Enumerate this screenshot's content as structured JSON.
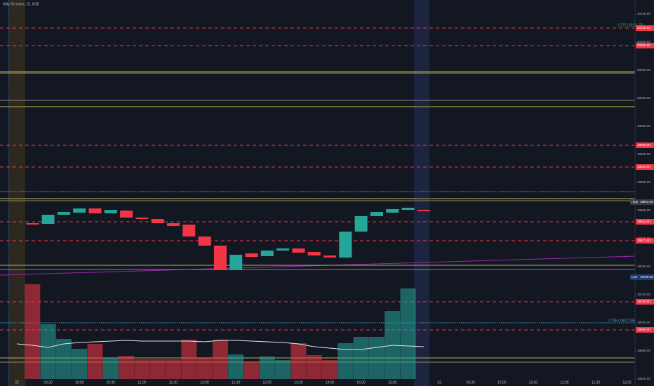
{
  "chart_data": {
    "type": "candlestick",
    "title": "Nifty 50 Index, 15, NSE",
    "categories": [
      "22",
      null,
      "09:30",
      null,
      "10:00",
      null,
      "10:30",
      null,
      "11:00",
      null,
      "11:30",
      null,
      "12:00",
      null,
      "12:30",
      null,
      "13:00",
      null,
      "13:30",
      null,
      "14:00",
      null,
      "14:30",
      null,
      "15:00",
      null,
      null,
      "23",
      null,
      "09:30",
      null,
      "10:00",
      null,
      "10:30",
      null,
      "11:00",
      null,
      "11:30",
      null,
      "12:00"
    ],
    "open": [
      null,
      19842,
      19841,
      19854,
      19857,
      19863,
      19856,
      19860,
      19850,
      19848,
      19842,
      19840,
      19823,
      19810,
      19775,
      19799,
      19795,
      19803,
      19806,
      19801,
      19796,
      19793,
      19830,
      19852,
      19857,
      19861,
      19861,
      null,
      null,
      null,
      null,
      null,
      null,
      null,
      null,
      null,
      null,
      null,
      null,
      null
    ],
    "high": {
      "label": "High",
      "value": 19872,
      "value_label": "19872.00"
    },
    "low": {
      "label": "Low",
      "value": 19765,
      "value_label": "19765.00"
    },
    "close": [
      null,
      19840,
      19854,
      19858,
      19863,
      19856,
      19861,
      19850,
      19848,
      19842,
      19838,
      19823,
      19810,
      19775,
      19797,
      19794,
      19803,
      19806,
      19800,
      19796,
      19793,
      19830,
      19852,
      19858,
      19862,
      19864,
      19859,
      null,
      null,
      null,
      null,
      null,
      null,
      null,
      null,
      null,
      null,
      null,
      null,
      null
    ],
    "volume": [
      null,
      135,
      78,
      57,
      43,
      50,
      30,
      33,
      28,
      28,
      28,
      56,
      30,
      56,
      35,
      25,
      32,
      27,
      51,
      34,
      27,
      51,
      60,
      60,
      97,
      129,
      null,
      null,
      null,
      null,
      null,
      null,
      null,
      null,
      null,
      null,
      null,
      null,
      null,
      null
    ],
    "volume_ma": [
      50,
      48,
      45,
      50,
      52,
      53,
      54,
      55,
      54,
      54,
      54,
      54,
      53,
      55,
      55,
      54,
      53,
      52,
      50,
      46,
      44,
      42,
      42,
      45,
      48,
      47,
      46,
      null,
      null,
      null,
      null,
      null,
      null,
      null,
      null,
      null,
      null,
      null,
      null,
      null
    ],
    "up_color": "#26a69a",
    "down_color": "#f23645",
    "ma_color": "#e0e3eb",
    "ylim": [
      19610,
      20160
    ],
    "volume_ylim": [
      0,
      150
    ],
    "yticks": [
      {
        "value": 20140,
        "label": "20140.00"
      },
      {
        "value": 20100,
        "label": "20100.00"
      },
      {
        "value": 20060,
        "label": "20060.00"
      },
      {
        "value": 20020,
        "label": "20020.00"
      },
      {
        "value": 19980,
        "label": "19980.00"
      },
      {
        "value": 19940,
        "label": "19940.00"
      },
      {
        "value": 19900,
        "label": "19900.00"
      },
      {
        "value": 19860,
        "label": "19860.00"
      },
      {
        "value": 19820,
        "label": "19820.00"
      },
      {
        "value": 19780,
        "label": "19780.00"
      },
      {
        "value": 19740,
        "label": "19740.00"
      },
      {
        "value": 19700,
        "label": "19700.00"
      },
      {
        "value": 19660,
        "label": "19660.00"
      },
      {
        "value": 19620,
        "label": "19620.00"
      }
    ],
    "levels": [
      {
        "value": 20120,
        "label": "20120.00",
        "color": "#f23645",
        "style": "dashed"
      },
      {
        "value": 20095,
        "label": "20095.00",
        "color": "#f23645",
        "style": "dashed"
      },
      {
        "value": 19953,
        "label": "19953.00",
        "color": "#f23645",
        "style": "dashed"
      },
      {
        "value": 19922,
        "label": "19922.00",
        "color": "#f23645",
        "style": "dashed"
      },
      {
        "value": 19844,
        "label": "19844.00",
        "color": "#f23645",
        "style": "dashed"
      },
      {
        "value": 19817,
        "label": "19817.00",
        "color": "#f23645",
        "style": "dashed"
      },
      {
        "value": 19730,
        "label": "19730.00",
        "color": "#f23645",
        "style": "dashed"
      },
      {
        "value": 19690,
        "label": "19690.00",
        "color": "#f23645",
        "style": "dashed"
      },
      {
        "value": 20058,
        "color": "#b5b54a",
        "style": "solid"
      },
      {
        "value": 20056,
        "color": "#b5b54a",
        "style": "solid"
      },
      {
        "value": 20017,
        "color": "#8a8a6a",
        "style": "solid"
      },
      {
        "value": 20008,
        "color": "#b5b54a",
        "style": "solid"
      },
      {
        "value": 19877,
        "color": "#b5b54a",
        "style": "solid"
      },
      {
        "value": 19874,
        "color": "#8a8a6a",
        "style": "solid"
      },
      {
        "value": 19782,
        "color": "#b5b54a",
        "style": "solid"
      },
      {
        "value": 19776,
        "color": "#8a8a6a",
        "style": "solid"
      },
      {
        "value": 19650,
        "color": "#b5b54a",
        "style": "solid"
      },
      {
        "value": 19644,
        "color": "#8a8a6a",
        "style": "solid"
      },
      {
        "value": 19887,
        "color": "#4aa3c2",
        "style": "dotted"
      },
      {
        "value": 19700,
        "color": "#4aa3c2",
        "style": "dotted"
      }
    ],
    "annotations": [
      "1.272 (20111.75)",
      "0.786 (19627.95)"
    ]
  }
}
